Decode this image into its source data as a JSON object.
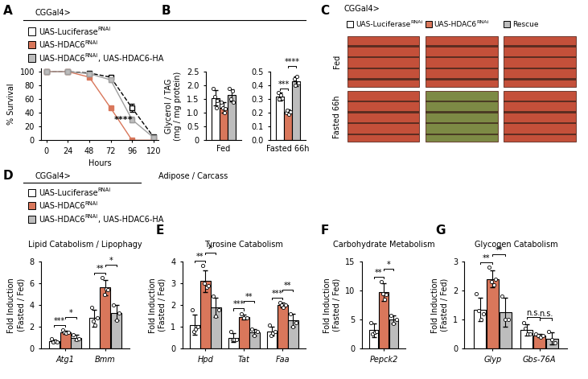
{
  "header": "CGGal4>",
  "tissue": "Adipose / Carcass",
  "genotypes": [
    {
      "name": "UAS-Luciferase",
      "sup": "RNAi",
      "color": "#ffffff"
    },
    {
      "name": "UAS-HDAC6",
      "sup": "RNAi",
      "color": "#d9775b"
    },
    {
      "name": "UAS-HDAC6",
      "sup": "RNAi",
      "suffix": ", UAS-HDAC6-HA",
      "color": "#bdbdbd"
    }
  ],
  "panel_C": {
    "panel": "C",
    "columns": [
      {
        "label": "UAS-Luciferase",
        "sup": "RNAi",
        "color": "#ffffff"
      },
      {
        "label": "UAS-HDAC6",
        "sup": "RNAi",
        "color": "#d9775b"
      },
      {
        "label": "Rescue",
        "color": "#bdbdbd"
      }
    ],
    "rows": [
      "Fed",
      "Fasted 66h"
    ]
  },
  "chart_data": [
    {
      "panel": "A",
      "type": "line",
      "xlabel": "Hours",
      "ylabel": "% Survival",
      "x": [
        0,
        24,
        48,
        72,
        96,
        120
      ],
      "xlim": [
        -6,
        126
      ],
      "xticks": [
        0,
        24,
        48,
        72,
        96,
        120
      ],
      "ylim": [
        0,
        105
      ],
      "yticks": [
        0,
        20,
        40,
        60,
        80,
        100
      ],
      "annotation": "****",
      "series": [
        {
          "color": "#000000",
          "marker": "s",
          "line_style": "dashed",
          "values": [
            100,
            100,
            98,
            92,
            47,
            5
          ],
          "errors": [
            0,
            0,
            0,
            2,
            6,
            2
          ]
        },
        {
          "color": "#d9775b",
          "marker": "s",
          "line_style": "solid",
          "values": [
            100,
            100,
            92,
            47,
            0,
            0
          ],
          "errors": [
            0,
            0,
            2,
            2,
            0,
            0
          ]
        },
        {
          "color": "#9e9e9e",
          "marker": "s",
          "line_style": "solid",
          "values": [
            100,
            100,
            97,
            88,
            30,
            4
          ],
          "errors": [
            0,
            0,
            1,
            3,
            4,
            2
          ]
        }
      ]
    },
    {
      "panel": "B",
      "type": "bar",
      "ylabel": "Glycerol / TAG\n(mg / mg protein)",
      "groups": [
        {
          "xlabel": "Fed",
          "ylim": [
            0,
            2.5
          ],
          "yticks": [
            0,
            0.5,
            {
              "value": 1.0,
              "label": "1.0"
            },
            1.5,
            {
              "value": 2.0,
              "label": "2.0"
            },
            2.5
          ],
          "series": [
            {
              "values": [
                1.55
              ],
              "errors": [
                0.28
              ],
              "points": [
                [
                  1.9,
                  1.6,
                  1.2,
                  1.45
                ]
              ]
            },
            {
              "values": [
                1.2
              ],
              "errors": [
                0.18
              ],
              "points": [
                [
                  1.4,
                  1.2,
                  1.0,
                  1.15
                ]
              ]
            },
            {
              "values": [
                1.65
              ],
              "errors": [
                0.22
              ],
              "points": [
                [
                  1.9,
                  1.5,
                  1.8,
                  1.4
                ]
              ]
            }
          ],
          "significance": []
        },
        {
          "xlabel": "Fasted 66h",
          "ylim": [
            0,
            0.5
          ],
          "yticks": [
            {
              "value": 0,
              "label": "0.0"
            },
            0.1,
            0.2,
            0.3,
            0.4,
            0.5
          ],
          "series": [
            {
              "values": [
                0.32
              ],
              "errors": [
                0.03
              ],
              "points": [
                [
                  0.35,
                  0.3,
                  0.33,
                  0.31
                ]
              ]
            },
            {
              "values": [
                0.21
              ],
              "errors": [
                0.015
              ],
              "points": [
                [
                  0.2,
                  0.22,
                  0.19,
                  0.21
                ]
              ]
            },
            {
              "values": [
                0.43
              ],
              "errors": [
                0.035
              ],
              "points": [
                [
                  0.45,
                  0.4,
                  0.47,
                  0.42
                ]
              ]
            }
          ],
          "significance": [
            {
              "category": 0,
              "pair": [
                0,
                1
              ],
              "text": "***"
            },
            {
              "category": 0,
              "pair": [
                1,
                2
              ],
              "text": "****"
            }
          ]
        }
      ]
    },
    {
      "panel": "D",
      "type": "bar",
      "subtitle": "Lipid Catabolism / Lipophagy",
      "ylabel": "Fold Induction\n(Fasted / Fed)",
      "categories": [
        "Atg1",
        "Bmm"
      ],
      "ylim": [
        0,
        8
      ],
      "yticks": [
        0,
        2,
        4,
        6,
        8
      ],
      "series": [
        {
          "values": [
            0.7,
            2.8
          ],
          "errors": [
            0.15,
            0.8
          ],
          "points": [
            [
              0.9,
              0.6,
              0.7,
              0.6
            ],
            [
              3.8,
              2.5,
              2.2,
              2.8
            ]
          ]
        },
        {
          "values": [
            1.5,
            5.6
          ],
          "errors": [
            0.12,
            0.7
          ],
          "points": [
            [
              1.7,
              1.5,
              1.4,
              1.5
            ],
            [
              6.5,
              5.0,
              5.5,
              5.4
            ]
          ]
        },
        {
          "values": [
            1.0,
            3.3
          ],
          "errors": [
            0.25,
            0.7
          ],
          "points": [
            [
              1.3,
              0.8,
              0.9
            ],
            [
              4.0,
              2.6,
              3.3
            ]
          ]
        }
      ],
      "significance": [
        {
          "category": 0,
          "pair": [
            0,
            1
          ],
          "text": "***"
        },
        {
          "category": 0,
          "pair": [
            1,
            2
          ],
          "text": "*"
        },
        {
          "category": 1,
          "pair": [
            0,
            1
          ],
          "text": "**"
        },
        {
          "category": 1,
          "pair": [
            1,
            2
          ],
          "text": "*"
        }
      ]
    },
    {
      "panel": "E",
      "type": "bar",
      "subtitle": "Tyrosine Catabolism",
      "ylabel": "Fold Induction\n(Fasted / Fed)",
      "categories": [
        "Hpd",
        "Tat",
        "Faa"
      ],
      "ylim": [
        0,
        4
      ],
      "yticks": [
        0,
        1,
        2,
        3,
        4
      ],
      "series": [
        {
          "values": [
            1.1,
            0.5,
            0.8
          ],
          "errors": [
            0.45,
            0.2,
            0.2
          ],
          "points": [
            [
              1.8,
              0.8,
              0.9,
              1.0
            ],
            [
              0.8,
              0.4,
              0.4,
              0.4
            ],
            [
              1.1,
              0.6,
              0.7,
              0.8
            ]
          ]
        },
        {
          "values": [
            3.1,
            1.45,
            2.0
          ],
          "errors": [
            0.5,
            0.1,
            0.1
          ],
          "points": [
            [
              3.8,
              3.0,
              2.8,
              2.9
            ],
            [
              1.6,
              1.4,
              1.4
            ],
            [
              2.1,
              2.0,
              1.9,
              2.0
            ]
          ]
        },
        {
          "values": [
            1.9,
            0.75,
            1.3
          ],
          "errors": [
            0.45,
            0.15,
            0.3
          ],
          "points": [
            [
              2.4,
              1.5,
              1.8
            ],
            [
              0.9,
              0.6,
              0.8
            ],
            [
              1.6,
              1.0,
              1.2
            ]
          ]
        }
      ],
      "significance": [
        {
          "category": 0,
          "pair": [
            0,
            1
          ],
          "text": "**"
        },
        {
          "category": 0,
          "pair": [
            1,
            2
          ],
          "text": "*"
        },
        {
          "category": 1,
          "pair": [
            0,
            1
          ],
          "text": "***"
        },
        {
          "category": 1,
          "pair": [
            1,
            2
          ],
          "text": "**"
        },
        {
          "category": 2,
          "pair": [
            0,
            1
          ],
          "text": "***"
        },
        {
          "category": 2,
          "pair": [
            1,
            2
          ],
          "text": "**"
        }
      ]
    },
    {
      "panel": "F",
      "type": "bar",
      "subtitle": "Carbohydrate Metabolism",
      "ylabel": "Fold Induction\n(Fasted / Fed)",
      "categories": [
        "Pepck2"
      ],
      "ylim": [
        0,
        15
      ],
      "yticks": [
        0,
        5,
        10,
        15
      ],
      "series": [
        {
          "values": [
            3.2
          ],
          "errors": [
            1.2
          ],
          "points": [
            [
              4.5,
              2.5,
              2.8,
              3.0
            ]
          ]
        },
        {
          "values": [
            9.7
          ],
          "errors": [
            1.5
          ],
          "points": [
            [
              11.5,
              9.5,
              8.5,
              9.3
            ]
          ]
        },
        {
          "values": [
            5.0
          ],
          "errors": [
            0.7
          ],
          "points": [
            [
              5.7,
              4.3,
              5.0
            ]
          ]
        }
      ],
      "significance": [
        {
          "category": 0,
          "pair": [
            0,
            1
          ],
          "text": "**"
        },
        {
          "category": 0,
          "pair": [
            1,
            2
          ],
          "text": "*"
        }
      ]
    },
    {
      "panel": "G",
      "type": "bar",
      "subtitle": "Glycogen Catabolism",
      "ylabel": "Fold Induction\n(Fasted / Fed)",
      "categories": [
        "Glyp",
        "Gbs-76A"
      ],
      "ylim": [
        0,
        3
      ],
      "yticks": [
        0,
        1,
        2,
        3
      ],
      "series": [
        {
          "values": [
            1.35,
            0.65
          ],
          "errors": [
            0.4,
            0.2
          ],
          "points": [
            [
              1.9,
              1.3,
              1.0,
              1.2
            ],
            [
              0.9,
              0.7,
              0.5,
              0.5
            ]
          ]
        },
        {
          "values": [
            2.4,
            0.45
          ],
          "errors": [
            0.3,
            0.05
          ],
          "points": [
            [
              2.8,
              2.3,
              2.2,
              2.4
            ],
            [
              0.5,
              0.45,
              0.4,
              0.45
            ]
          ]
        },
        {
          "values": [
            1.25,
            0.35
          ],
          "errors": [
            0.5,
            0.2
          ],
          "points": [
            [
              1.8,
              1.0,
              1.0
            ],
            [
              0.6,
              0.3,
              0.2
            ]
          ]
        }
      ],
      "significance": [
        {
          "category": 0,
          "pair": [
            0,
            1
          ],
          "text": "**"
        },
        {
          "category": 0,
          "pair": [
            1,
            2
          ],
          "text": "**"
        },
        {
          "category": 1,
          "pair": [
            0,
            1
          ],
          "text": "n.s."
        },
        {
          "category": 1,
          "pair": [
            1,
            2
          ],
          "text": "n.s."
        }
      ]
    }
  ]
}
